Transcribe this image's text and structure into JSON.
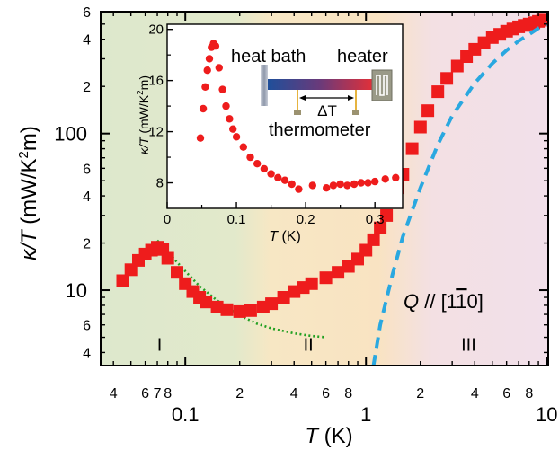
{
  "chart_data": [
    {
      "type": "scatter",
      "title": "",
      "xlabel": "T (K)",
      "ylabel": "κ/T (mW/K²m)",
      "xlabel_parts": {
        "var": "T",
        "unit": " (K)"
      },
      "ylabel_parts": {
        "var": "κ/T",
        "unit_a": " (mW/K",
        "sup": "2",
        "unit_b": "m)"
      },
      "xscale": "log",
      "yscale": "log",
      "xlim": [
        0.034,
        10.2
      ],
      "ylim": [
        3.3,
        600
      ],
      "x_major_ticks": [
        {
          "value": 0.1,
          "label": "0.1"
        },
        {
          "value": 1,
          "label": "1"
        },
        {
          "value": 10,
          "label": "10"
        }
      ],
      "x_minor_ticks": [
        {
          "value": 0.04,
          "label": "4"
        },
        {
          "value": 0.06,
          "label": "6"
        },
        {
          "value": 0.07,
          "label": "7"
        },
        {
          "value": 0.08,
          "label": "8"
        },
        {
          "value": 0.2,
          "label": "2"
        },
        {
          "value": 0.4,
          "label": "4"
        },
        {
          "value": 0.6,
          "label": "6"
        },
        {
          "value": 0.8,
          "label": "8"
        },
        {
          "value": 2,
          "label": "2"
        },
        {
          "value": 4,
          "label": "4"
        },
        {
          "value": 6,
          "label": "6"
        },
        {
          "value": 8,
          "label": "8"
        }
      ],
      "x_minor_unlabeled": [
        0.05,
        0.09,
        0.3,
        0.5,
        0.7,
        0.9,
        3,
        5,
        7,
        9
      ],
      "y_major_ticks": [
        {
          "value": 10,
          "label": "10"
        },
        {
          "value": 100,
          "label": "100"
        }
      ],
      "y_minor_ticks": [
        {
          "value": 4,
          "label": "4"
        },
        {
          "value": 6,
          "label": "6"
        },
        {
          "value": 20,
          "label": "2"
        },
        {
          "value": 40,
          "label": "4"
        },
        {
          "value": 60,
          "label": "6"
        },
        {
          "value": 200,
          "label": "2"
        },
        {
          "value": 400,
          "label": "4"
        },
        {
          "value": 600,
          "label": "6"
        }
      ],
      "y_minor_unlabeled": [
        5,
        7,
        8,
        9,
        30,
        50,
        70,
        80,
        90,
        300,
        500
      ],
      "regions": [
        {
          "label": "I",
          "label_x": 0.072,
          "label_y": 4.1,
          "x_from": 0.034,
          "x_to": 0.17,
          "color": "#dde8cc"
        },
        {
          "label": "II",
          "label_x": 0.48,
          "label_y": 4.1,
          "x_from": 0.2,
          "x_to": 1.0,
          "color": "#f8e3c0"
        },
        {
          "label": "III",
          "label_x": 3.7,
          "label_y": 4.1,
          "x_from": 1.6,
          "x_to": 10.2,
          "color": "#f2e0ea"
        }
      ],
      "annotation": {
        "pre": "Q",
        "mid": " // [1",
        "bar": "1",
        "post": "0]",
        "x": 2.4,
        "y": 7.3
      },
      "colors": {
        "data": "#ee1c1c",
        "fit_low": "#22a022",
        "fit_high": "#2aa8e0"
      },
      "series": [
        {
          "marker": "square",
          "x": [
            0.045,
            0.05,
            0.055,
            0.06,
            0.065,
            0.07,
            0.075,
            0.08,
            0.09,
            0.1,
            0.11,
            0.12,
            0.13,
            0.15,
            0.17,
            0.2,
            0.23,
            0.27,
            0.3,
            0.35,
            0.4,
            0.45,
            0.5,
            0.6,
            0.7,
            0.8,
            0.9,
            1.0,
            1.1,
            1.2,
            1.3,
            1.4,
            1.5,
            1.6,
            1.8,
            2.0,
            2.2,
            2.5,
            2.8,
            3.2,
            3.6,
            4.0,
            4.5,
            5.0,
            5.5,
            6.0,
            6.5,
            7.0,
            7.5,
            8.0,
            8.5,
            9.0,
            9.5
          ],
          "y": [
            11.5,
            13.5,
            15.5,
            17.0,
            18.0,
            18.8,
            18.2,
            16.0,
            13.0,
            11.0,
            9.8,
            9.0,
            8.4,
            7.8,
            7.5,
            7.3,
            7.4,
            7.8,
            8.2,
            9.0,
            9.8,
            10.4,
            11.0,
            12.0,
            13.0,
            14.2,
            15.8,
            18.0,
            21.0,
            25.0,
            30.0,
            37.0,
            45.0,
            55.0,
            80.0,
            110.0,
            140.0,
            185.0,
            225.0,
            270.0,
            310.0,
            345.0,
            380.0,
            410.0,
            430.0,
            450.0,
            465.0,
            480.0,
            490.0,
            500.0,
            510.0,
            520.0,
            530.0
          ]
        },
        {
          "style": "dotted",
          "x": [
            0.07,
            0.08,
            0.1,
            0.12,
            0.15,
            0.2,
            0.25,
            0.3,
            0.4,
            0.5,
            0.6
          ],
          "y": [
            20.8,
            17.5,
            13.2,
            10.6,
            8.6,
            6.9,
            6.1,
            5.7,
            5.3,
            5.1,
            5.0
          ]
        },
        {
          "style": "dashed",
          "x": [
            1.1,
            1.2,
            1.4,
            1.6,
            2.0,
            2.5,
            3.0,
            4.0,
            5.0,
            6.0,
            7.0,
            8.0,
            9.0,
            10.0
          ],
          "y": [
            3.3,
            6.0,
            12.5,
            22.0,
            45.0,
            85.0,
            130.0,
            210.0,
            280.0,
            340.0,
            390.0,
            430.0,
            470.0,
            500.0
          ]
        }
      ]
    },
    {
      "type": "scatter",
      "title": "",
      "xlabel": "T (K)",
      "ylabel": "κ/T (mW/K²m)",
      "xlabel_parts": {
        "var": "T",
        "unit": " (K)"
      },
      "ylabel_parts": {
        "var": "κ/T",
        "unit_a": " (mW/K",
        "sup": "2",
        "unit_b": "m)"
      },
      "xlim": [
        0,
        0.34
      ],
      "ylim": [
        6.0,
        20.4
      ],
      "x_ticks": [
        {
          "value": 0,
          "label": "0"
        },
        {
          "value": 0.1,
          "label": "0.1"
        },
        {
          "value": 0.2,
          "label": "0.2"
        },
        {
          "value": 0.3,
          "label": "0.3"
        }
      ],
      "y_ticks": [
        {
          "value": 8,
          "label": "8"
        },
        {
          "value": 12,
          "label": "12"
        },
        {
          "value": 16,
          "label": "16"
        },
        {
          "value": 20,
          "label": "20"
        }
      ],
      "series": [
        {
          "marker": "circle",
          "x": [
            0.048,
            0.052,
            0.055,
            0.058,
            0.061,
            0.064,
            0.067,
            0.07,
            0.075,
            0.08,
            0.085,
            0.09,
            0.095,
            0.1,
            0.11,
            0.12,
            0.13,
            0.14,
            0.15,
            0.16,
            0.17,
            0.18,
            0.19,
            0.21,
            0.23,
            0.24,
            0.25,
            0.26,
            0.27,
            0.28,
            0.29,
            0.3,
            0.315,
            0.33
          ],
          "y": [
            11.5,
            13.8,
            15.5,
            16.8,
            17.7,
            18.6,
            18.9,
            18.7,
            17.0,
            15.3,
            14.0,
            13.0,
            12.2,
            11.6,
            10.8,
            10.0,
            9.5,
            9.1,
            8.7,
            8.4,
            8.2,
            7.9,
            7.5,
            7.8,
            7.6,
            7.8,
            7.9,
            7.8,
            7.9,
            8.0,
            8.0,
            8.1,
            8.3,
            8.4
          ]
        }
      ],
      "schematic": {
        "heat_bath_label": "heat bath",
        "heater_label": "heater",
        "delta_label": "ΔT",
        "thermometer_label": "thermometer"
      }
    }
  ]
}
